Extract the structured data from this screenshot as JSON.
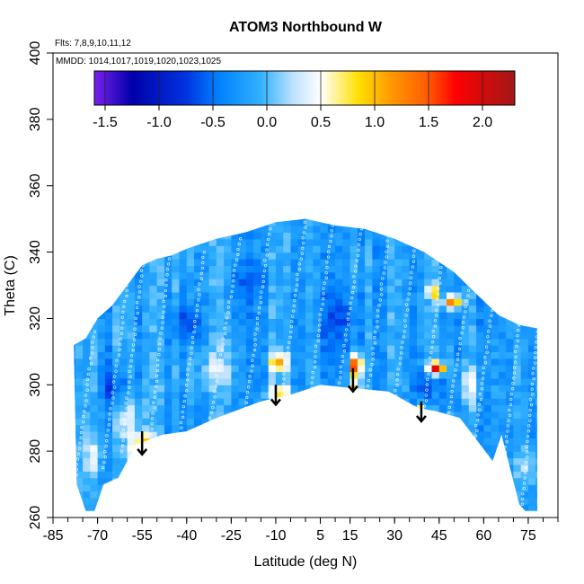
{
  "chart_data": {
    "type": "heatmap",
    "title": "ATOM3 Northbound W",
    "flights_note": "Flts: 7,8,9,10,11,12",
    "mmdd_note": "MMDD: 1014,1017,1019,1020,1023,1025",
    "xlabel": "Latitude (deg N)",
    "ylabel": "Theta (C)",
    "xlim": [
      -85,
      85
    ],
    "ylim": [
      260,
      400
    ],
    "x_ticks": [
      -85,
      -70,
      -55,
      -40,
      -25,
      -10,
      5,
      15,
      30,
      45,
      60,
      75
    ],
    "y_ticks": [
      260,
      280,
      300,
      320,
      340,
      360,
      380,
      400
    ],
    "colorbar": {
      "range": [
        -1.6,
        2.3
      ],
      "ticks": [
        "-1.5",
        "-1.0",
        "-0.5",
        "0.0",
        "0.5",
        "1.0",
        "1.5",
        "2.0"
      ],
      "tick_values": [
        -1.5,
        -1.0,
        -0.5,
        0.0,
        0.5,
        1.0,
        1.5,
        2.0
      ],
      "stops": [
        {
          "value": -1.6,
          "color": "#7b1ff0"
        },
        {
          "value": -1.25,
          "color": "#0000a8"
        },
        {
          "value": -0.75,
          "color": "#0033e0"
        },
        {
          "value": -0.45,
          "color": "#0080ff"
        },
        {
          "value": -0.05,
          "color": "#33b2ff"
        },
        {
          "value": 0.25,
          "color": "#bfe2ff"
        },
        {
          "value": 0.5,
          "color": "#ffffff"
        },
        {
          "value": 0.85,
          "color": "#ffe000"
        },
        {
          "value": 1.15,
          "color": "#ff9900"
        },
        {
          "value": 1.5,
          "color": "#ff5a00"
        },
        {
          "value": 1.75,
          "color": "#ff0000"
        },
        {
          "value": 2.3,
          "color": "#a01818"
        }
      ]
    },
    "data_envelope": {
      "top": [
        [
          -78,
          312
        ],
        [
          -74,
          314
        ],
        [
          -70,
          320
        ],
        [
          -65,
          324
        ],
        [
          -60,
          330
        ],
        [
          -55,
          336
        ],
        [
          -50,
          338
        ],
        [
          -45,
          339
        ],
        [
          -40,
          341
        ],
        [
          -30,
          344
        ],
        [
          -20,
          346
        ],
        [
          -10,
          349
        ],
        [
          0,
          350
        ],
        [
          10,
          348
        ],
        [
          20,
          347
        ],
        [
          30,
          344
        ],
        [
          40,
          340
        ],
        [
          50,
          334
        ],
        [
          58,
          327
        ],
        [
          65,
          321
        ],
        [
          72,
          318
        ],
        [
          78,
          317
        ]
      ],
      "bottom": [
        [
          78,
          262
        ],
        [
          74,
          262
        ],
        [
          72,
          264
        ],
        [
          66,
          285
        ],
        [
          63,
          277
        ],
        [
          58,
          283
        ],
        [
          52,
          290
        ],
        [
          44,
          292
        ],
        [
          38,
          293
        ],
        [
          28,
          298
        ],
        [
          16,
          299
        ],
        [
          5,
          300
        ],
        [
          -5,
          297
        ],
        [
          -15,
          295
        ],
        [
          -30,
          290
        ],
        [
          -40,
          286
        ],
        [
          -48,
          285
        ],
        [
          -57,
          282
        ],
        [
          -63,
          272
        ],
        [
          -68,
          270
        ],
        [
          -71,
          262
        ],
        [
          -74,
          262
        ],
        [
          -77,
          270
        ]
      ]
    },
    "background_value": -0.2,
    "anomalies": [
      {
        "lat": -55,
        "theta": 282,
        "value": 1.0,
        "sx": 4,
        "sy": 4
      },
      {
        "lat": -58,
        "theta": 274,
        "value": 0.8,
        "sx": 2,
        "sy": 3
      },
      {
        "lat": -9,
        "theta": 307,
        "value": 1.0,
        "sx": 3,
        "sy": 3
      },
      {
        "lat": -9,
        "theta": 298,
        "value": 0.9,
        "sx": 4,
        "sy": 2
      },
      {
        "lat": 17,
        "theta": 306,
        "value": 1.9,
        "sx": 2,
        "sy": 3
      },
      {
        "lat": 17,
        "theta": 299,
        "value": 0.9,
        "sx": 2,
        "sy": 3
      },
      {
        "lat": 39,
        "theta": 292,
        "value": 0.9,
        "sx": 2,
        "sy": 2
      },
      {
        "lat": 44,
        "theta": 305,
        "value": 1.9,
        "sx": 3,
        "sy": 2
      },
      {
        "lat": 50,
        "theta": 325,
        "value": 1.4,
        "sx": 3,
        "sy": 2
      },
      {
        "lat": 43,
        "theta": 328,
        "value": 1.1,
        "sx": 2,
        "sy": 2
      },
      {
        "lat": -64,
        "theta": 300,
        "value": -0.7,
        "sx": 4,
        "sy": 6
      },
      {
        "lat": -40,
        "theta": 318,
        "value": -0.6,
        "sx": 5,
        "sy": 6
      },
      {
        "lat": 42,
        "theta": 300,
        "value": -0.7,
        "sx": 4,
        "sy": 6
      },
      {
        "lat": 10,
        "theta": 320,
        "value": -0.6,
        "sx": 6,
        "sy": 8
      },
      {
        "lat": -20,
        "theta": 330,
        "value": -0.5,
        "sx": 6,
        "sy": 6
      },
      {
        "lat": -60,
        "theta": 290,
        "value": 0.3,
        "sx": 5,
        "sy": 6
      },
      {
        "lat": -30,
        "theta": 305,
        "value": 0.2,
        "sx": 6,
        "sy": 6
      },
      {
        "lat": 55,
        "theta": 300,
        "value": 0.3,
        "sx": 4,
        "sy": 6
      },
      {
        "lat": -72,
        "theta": 278,
        "value": 0.3,
        "sx": 3,
        "sy": 6
      },
      {
        "lat": 75,
        "theta": 275,
        "value": 0.3,
        "sx": 3,
        "sy": 6
      }
    ],
    "arrows": [
      {
        "lat": -55,
        "theta_from": 286,
        "theta_to": 279
      },
      {
        "lat": -10,
        "theta_from": 300,
        "theta_to": 294
      },
      {
        "lat": 16,
        "theta_from": 305,
        "theta_to": 298
      },
      {
        "lat": 39,
        "theta_from": 295,
        "theta_to": 289
      }
    ],
    "profiles": [
      {
        "lat_from": -78,
        "lat_to": -71,
        "theta_from": 268,
        "theta_to": 316
      },
      {
        "lat_from": -68,
        "lat_to": -60,
        "theta_from": 275,
        "theta_to": 330
      },
      {
        "lat_from": -62,
        "lat_to": -55,
        "theta_from": 280,
        "theta_to": 336
      },
      {
        "lat_from": -52,
        "lat_to": -46,
        "theta_from": 285,
        "theta_to": 338
      },
      {
        "lat_from": -42,
        "lat_to": -34,
        "theta_from": 287,
        "theta_to": 340
      },
      {
        "lat_from": -32,
        "lat_to": -22,
        "theta_from": 290,
        "theta_to": 344
      },
      {
        "lat_from": -20,
        "lat_to": -12,
        "theta_from": 293,
        "theta_to": 347
      },
      {
        "lat_from": -8,
        "lat_to": 0,
        "theta_from": 297,
        "theta_to": 349
      },
      {
        "lat_from": 2,
        "lat_to": 9,
        "theta_from": 299,
        "theta_to": 348
      },
      {
        "lat_from": 11,
        "lat_to": 19,
        "theta_from": 299,
        "theta_to": 347
      },
      {
        "lat_from": 21,
        "lat_to": 28,
        "theta_from": 298,
        "theta_to": 345
      },
      {
        "lat_from": 30,
        "lat_to": 37,
        "theta_from": 295,
        "theta_to": 342
      },
      {
        "lat_from": 40,
        "lat_to": 46,
        "theta_from": 292,
        "theta_to": 337
      },
      {
        "lat_from": 48,
        "lat_to": 55,
        "theta_from": 290,
        "theta_to": 330
      },
      {
        "lat_from": 57,
        "lat_to": 63,
        "theta_from": 283,
        "theta_to": 324
      },
      {
        "lat_from": 66,
        "lat_to": 72,
        "theta_from": 270,
        "theta_to": 318
      },
      {
        "lat_from": 73,
        "lat_to": 78,
        "theta_from": 264,
        "theta_to": 316
      }
    ]
  }
}
